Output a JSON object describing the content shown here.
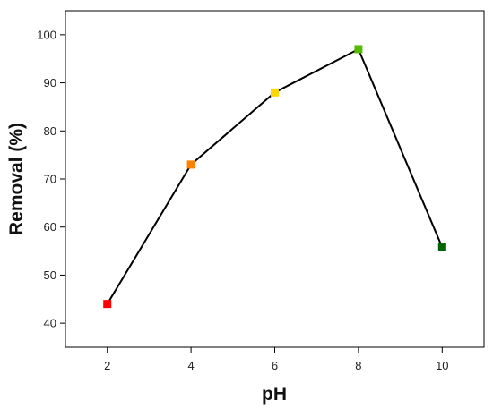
{
  "chart_data": {
    "type": "line",
    "title": "",
    "xlabel": "pH",
    "ylabel": "Removal (%)",
    "x": [
      2,
      4,
      6,
      8,
      10
    ],
    "xlim": [
      1,
      11
    ],
    "ylim": [
      35,
      105
    ],
    "xticks": [
      2,
      4,
      6,
      8,
      10
    ],
    "yticks": [
      40,
      50,
      60,
      70,
      80,
      90,
      100
    ],
    "grid": false,
    "legend": "none",
    "line_color": "#000000",
    "series": [
      {
        "values": [
          44,
          73,
          88,
          97,
          55.8
        ],
        "marker": "square",
        "marker_colors": [
          "#ff0000",
          "#ff8000",
          "#ffd700",
          "#55bb00",
          "#006400"
        ]
      }
    ]
  }
}
